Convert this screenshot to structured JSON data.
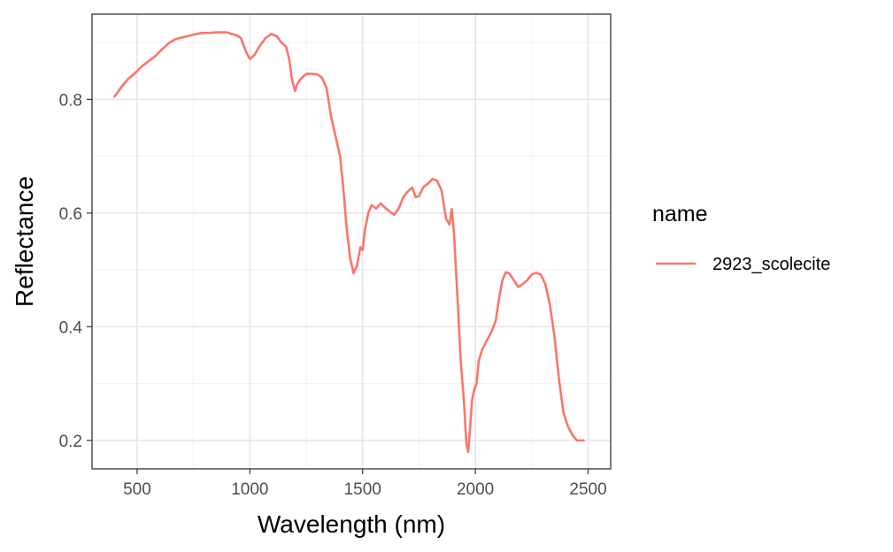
{
  "chart_data": {
    "type": "line",
    "xlabel": "Wavelength (nm)",
    "ylabel": "Reflectance",
    "xlim": [
      300,
      2600
    ],
    "ylim": [
      0.15,
      0.95
    ],
    "x_ticks": [
      500,
      1000,
      1500,
      2000,
      2500
    ],
    "y_ticks": [
      0.2,
      0.4,
      0.6,
      0.8
    ],
    "x_tick_labels": [
      "500",
      "1000",
      "1500",
      "2000",
      "2500"
    ],
    "y_tick_labels": [
      "0.2",
      "0.4",
      "0.6",
      "0.8"
    ],
    "grid": true,
    "legend": {
      "title": "name",
      "position": "right"
    },
    "series": [
      {
        "name": "2923_scolecite",
        "color": "#F8766D",
        "points": [
          [
            400,
            0.805
          ],
          [
            430,
            0.822
          ],
          [
            460,
            0.836
          ],
          [
            490,
            0.846
          ],
          [
            520,
            0.858
          ],
          [
            550,
            0.867
          ],
          [
            580,
            0.876
          ],
          [
            610,
            0.888
          ],
          [
            640,
            0.899
          ],
          [
            670,
            0.906
          ],
          [
            700,
            0.909
          ],
          [
            730,
            0.912
          ],
          [
            760,
            0.915
          ],
          [
            790,
            0.917
          ],
          [
            820,
            0.917
          ],
          [
            850,
            0.918
          ],
          [
            880,
            0.918
          ],
          [
            900,
            0.918
          ],
          [
            920,
            0.915
          ],
          [
            940,
            0.913
          ],
          [
            960,
            0.908
          ],
          [
            985,
            0.882
          ],
          [
            1000,
            0.871
          ],
          [
            1020,
            0.878
          ],
          [
            1045,
            0.895
          ],
          [
            1070,
            0.908
          ],
          [
            1095,
            0.915
          ],
          [
            1120,
            0.911
          ],
          [
            1140,
            0.9
          ],
          [
            1160,
            0.893
          ],
          [
            1175,
            0.87
          ],
          [
            1185,
            0.838
          ],
          [
            1200,
            0.815
          ],
          [
            1210,
            0.827
          ],
          [
            1225,
            0.836
          ],
          [
            1250,
            0.845
          ],
          [
            1275,
            0.845
          ],
          [
            1300,
            0.844
          ],
          [
            1320,
            0.838
          ],
          [
            1340,
            0.82
          ],
          [
            1360,
            0.77
          ],
          [
            1380,
            0.735
          ],
          [
            1400,
            0.7
          ],
          [
            1415,
            0.64
          ],
          [
            1430,
            0.57
          ],
          [
            1445,
            0.52
          ],
          [
            1460,
            0.494
          ],
          [
            1475,
            0.508
          ],
          [
            1490,
            0.54
          ],
          [
            1500,
            0.535
          ],
          [
            1510,
            0.57
          ],
          [
            1525,
            0.6
          ],
          [
            1540,
            0.614
          ],
          [
            1560,
            0.608
          ],
          [
            1580,
            0.617
          ],
          [
            1600,
            0.609
          ],
          [
            1620,
            0.603
          ],
          [
            1640,
            0.597
          ],
          [
            1660,
            0.608
          ],
          [
            1680,
            0.628
          ],
          [
            1700,
            0.638
          ],
          [
            1720,
            0.645
          ],
          [
            1735,
            0.628
          ],
          [
            1750,
            0.63
          ],
          [
            1770,
            0.646
          ],
          [
            1790,
            0.652
          ],
          [
            1810,
            0.66
          ],
          [
            1830,
            0.657
          ],
          [
            1850,
            0.64
          ],
          [
            1870,
            0.59
          ],
          [
            1885,
            0.58
          ],
          [
            1895,
            0.607
          ],
          [
            1905,
            0.565
          ],
          [
            1920,
            0.455
          ],
          [
            1935,
            0.34
          ],
          [
            1950,
            0.265
          ],
          [
            1960,
            0.195
          ],
          [
            1968,
            0.18
          ],
          [
            1975,
            0.215
          ],
          [
            1985,
            0.27
          ],
          [
            1995,
            0.29
          ],
          [
            2005,
            0.3
          ],
          [
            2015,
            0.34
          ],
          [
            2030,
            0.36
          ],
          [
            2050,
            0.375
          ],
          [
            2070,
            0.39
          ],
          [
            2090,
            0.41
          ],
          [
            2105,
            0.45
          ],
          [
            2120,
            0.482
          ],
          [
            2135,
            0.496
          ],
          [
            2150,
            0.494
          ],
          [
            2170,
            0.482
          ],
          [
            2190,
            0.47
          ],
          [
            2210,
            0.475
          ],
          [
            2230,
            0.482
          ],
          [
            2250,
            0.492
          ],
          [
            2270,
            0.495
          ],
          [
            2290,
            0.492
          ],
          [
            2310,
            0.475
          ],
          [
            2330,
            0.44
          ],
          [
            2350,
            0.385
          ],
          [
            2370,
            0.31
          ],
          [
            2390,
            0.25
          ],
          [
            2410,
            0.225
          ],
          [
            2430,
            0.21
          ],
          [
            2450,
            0.2
          ],
          [
            2480,
            0.2
          ]
        ]
      }
    ]
  }
}
